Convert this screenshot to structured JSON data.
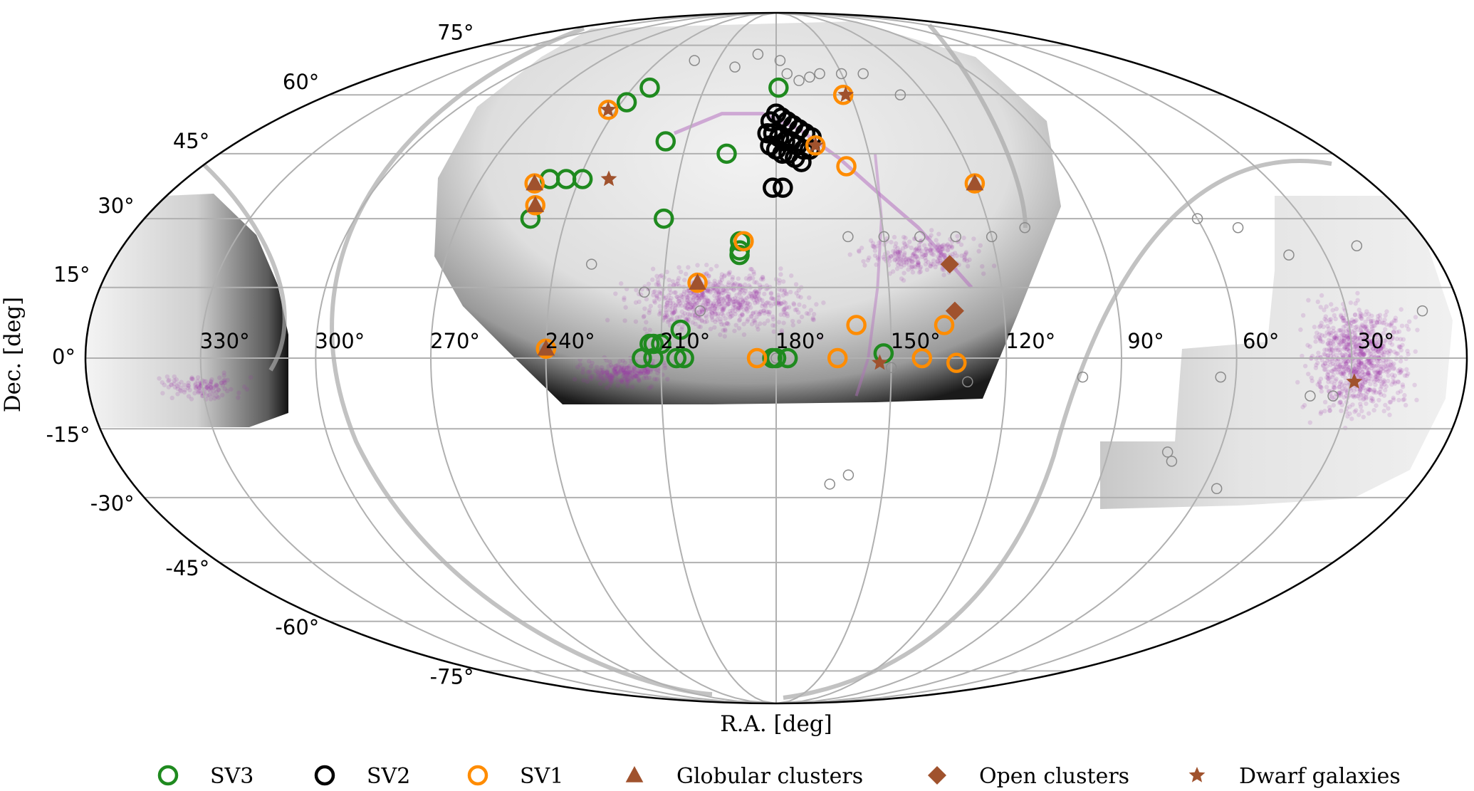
{
  "chart_data": {
    "type": "scatter",
    "projection": "Mollweide",
    "xlabel": "R.A. [deg]",
    "ylabel": "Dec. [deg]",
    "ra_ticks": [
      "330°",
      "300°",
      "270°",
      "240°",
      "210°",
      "180°",
      "150°",
      "120°",
      "90°",
      "60°",
      "30°"
    ],
    "dec_ticks": [
      "75°",
      "60°",
      "45°",
      "30°",
      "15°",
      "0°",
      "-15°",
      "-30°",
      "-45°",
      "-60°",
      "-75°"
    ],
    "grid": true,
    "legend_position": "bottom",
    "legend": [
      {
        "label": "SV3",
        "marker": "open-circle",
        "color": "#1f8a1f"
      },
      {
        "label": "SV2",
        "marker": "open-circle",
        "color": "#000000"
      },
      {
        "label": "SV1",
        "marker": "open-circle",
        "color": "#ff8c00"
      },
      {
        "label": "Globular clusters",
        "marker": "triangle",
        "color": "#a0522d"
      },
      {
        "label": "Open clusters",
        "marker": "diamond",
        "color": "#a0522d"
      },
      {
        "label": "Dwarf galaxies",
        "marker": "star",
        "color": "#a0522d"
      }
    ],
    "series": [
      {
        "name": "SV3",
        "points": [
          [
            238,
            58
          ],
          [
            233,
            62
          ],
          [
            217,
            48
          ],
          [
            196,
            45
          ],
          [
            239,
            39
          ],
          [
            244,
            39
          ],
          [
            249,
            39
          ],
          [
            250,
            30
          ],
          [
            212,
            30
          ],
          [
            190,
            25
          ],
          [
            190,
            22
          ],
          [
            190,
            23
          ],
          [
            210,
            3
          ],
          [
            212,
            3
          ],
          [
            213,
            3
          ],
          [
            212,
            0
          ],
          [
            215,
            0
          ],
          [
            206,
            0
          ],
          [
            204,
            0
          ],
          [
            205,
            6
          ],
          [
            181,
            0
          ],
          [
            180,
            0
          ],
          [
            177,
            0
          ],
          [
            179,
            62
          ],
          [
            152,
            1
          ]
        ]
      },
      {
        "name": "SV2",
        "points": [
          [
            182,
            53
          ],
          [
            180,
            55
          ],
          [
            178,
            54
          ],
          [
            176,
            53
          ],
          [
            174,
            52
          ],
          [
            172,
            51
          ],
          [
            170,
            50
          ],
          [
            168,
            49
          ],
          [
            183,
            50
          ],
          [
            181,
            50
          ],
          [
            179,
            49
          ],
          [
            177,
            48
          ],
          [
            175,
            48
          ],
          [
            173,
            47
          ],
          [
            171,
            46
          ],
          [
            169,
            46
          ],
          [
            182,
            47
          ],
          [
            180,
            46
          ],
          [
            178,
            45
          ],
          [
            176,
            45
          ],
          [
            174,
            44
          ],
          [
            172,
            43
          ],
          [
            181,
            37
          ],
          [
            178,
            37
          ]
        ]
      },
      {
        "name": "SV1",
        "points": [
          [
            243,
            56
          ],
          [
            153,
            60
          ],
          [
            167,
            47
          ],
          [
            158,
            42
          ],
          [
            253,
            38
          ],
          [
            250,
            33
          ],
          [
            189,
            25
          ],
          [
            201,
            16
          ],
          [
            159,
            7
          ],
          [
            136,
            7
          ],
          [
            240,
            2
          ],
          [
            185,
            0
          ],
          [
            164,
            0
          ],
          [
            142,
            0
          ],
          [
            133,
            -1
          ],
          [
            120,
            38
          ]
        ]
      },
      {
        "name": "Globular clusters",
        "points": [
          [
            253,
            38
          ],
          [
            250,
            33
          ],
          [
            201,
            16
          ],
          [
            240,
            2
          ],
          [
            120,
            38
          ]
        ]
      },
      {
        "name": "Open clusters",
        "points": [
          [
            133,
            20
          ],
          [
            133,
            10
          ]
        ]
      },
      {
        "name": "Dwarf galaxies",
        "points": [
          [
            243,
            56
          ],
          [
            152,
            60
          ],
          [
            167,
            47
          ],
          [
            231,
            39
          ],
          [
            153,
            -1
          ],
          [
            29,
            -5
          ]
        ]
      }
    ],
    "background_targets_sample": [
      [
        222,
        70
      ],
      [
        200,
        68
      ],
      [
        190,
        72
      ],
      [
        178,
        70
      ],
      [
        175,
        66
      ],
      [
        170,
        64
      ],
      [
        165,
        65
      ],
      [
        160,
        66
      ],
      [
        150,
        66
      ],
      [
        140,
        66
      ],
      [
        130,
        60
      ],
      [
        160,
        26
      ],
      [
        150,
        26
      ],
      [
        140,
        26
      ],
      [
        130,
        26
      ],
      [
        120,
        26
      ],
      [
        110,
        28
      ],
      [
        60,
        30
      ],
      [
        50,
        28
      ],
      [
        40,
        22
      ],
      [
        20,
        24
      ],
      [
        10,
        10
      ],
      [
        230,
        20
      ],
      [
        215,
        14
      ],
      [
        200,
        10
      ],
      [
        180,
        0
      ],
      [
        150,
        -2
      ],
      [
        130,
        -5
      ],
      [
        160,
        -25
      ],
      [
        165,
        -27
      ],
      [
        100,
        -4
      ],
      [
        74,
        -20
      ],
      [
        72,
        -22
      ],
      [
        56,
        -28
      ],
      [
        64,
        -4
      ],
      [
        40,
        -8
      ],
      [
        34,
        -8
      ]
    ]
  }
}
